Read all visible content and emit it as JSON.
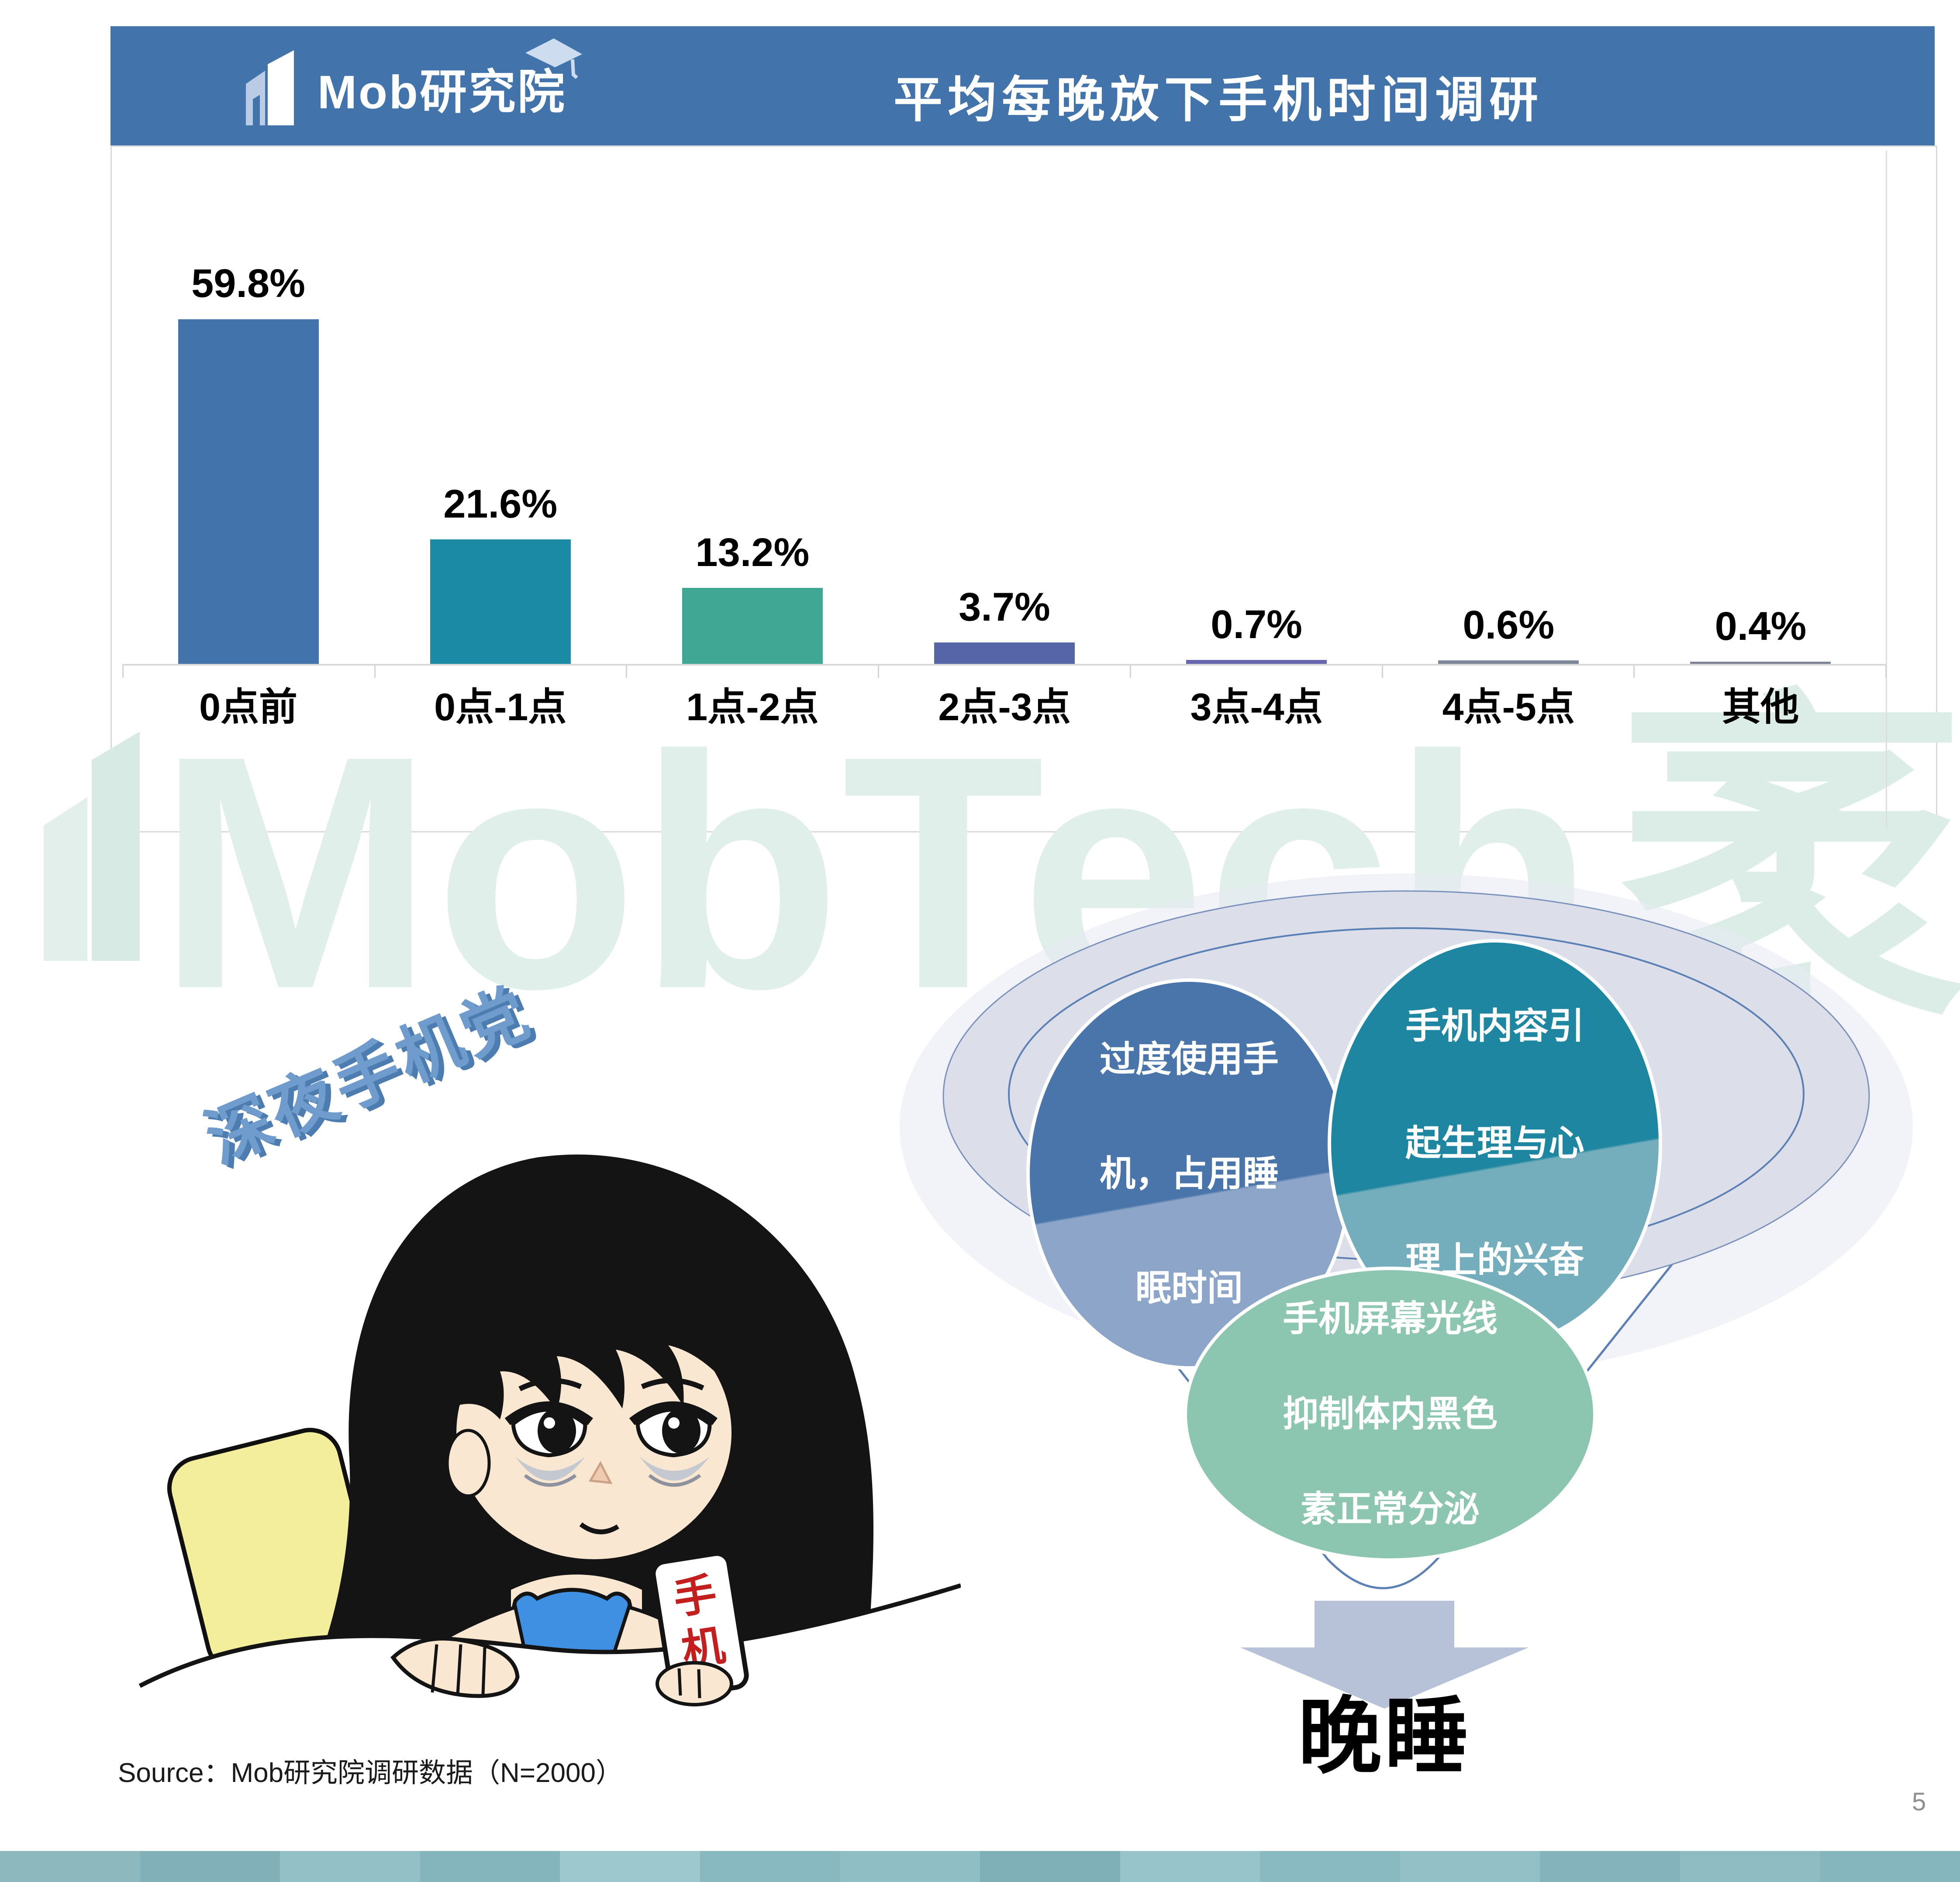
{
  "header": {
    "logo_text": "Mob研究院",
    "title": "平均每晚放下手机时间调研"
  },
  "chart_data": {
    "type": "bar",
    "title": "平均每晚放下手机时间调研",
    "categories": [
      "0点前",
      "0点-1点",
      "1点-2点",
      "2点-3点",
      "3点-4点",
      "4点-5点",
      "其他"
    ],
    "values": [
      59.8,
      21.6,
      13.2,
      3.7,
      0.7,
      0.6,
      0.4
    ],
    "value_labels": [
      "59.8%",
      "21.6%",
      "13.2%",
      "3.7%",
      "0.7%",
      "0.6%",
      "0.4%"
    ],
    "bar_colors": [
      "#4273ab",
      "#1b8aa5",
      "#3fa794",
      "#5665a8",
      "#6765ae",
      "#7e8798",
      "#7c8495"
    ],
    "xlabel": "",
    "ylabel": "",
    "ylim": [
      0,
      65
    ],
    "grid": false,
    "legend": false,
    "value_labels_position": "above"
  },
  "watermark": {
    "text_latin": "MobTech",
    "text_cjk": "袤博",
    "color": "#e1efea"
  },
  "annotation": {
    "badge": "深夜手机党"
  },
  "cartoon": {
    "phone_label_chars": [
      "手",
      "机"
    ]
  },
  "funnel": {
    "bubbles": [
      {
        "lines": [
          "过度使用手",
          "机，占用睡",
          "眠时间"
        ],
        "color_top": "#4a75aa",
        "color_bottom": "#8ca5c8"
      },
      {
        "lines": [
          "手机内容引",
          "起生理与心",
          "理上的兴奋"
        ],
        "color_top": "#1e86a1",
        "color_bottom": "#74aebc"
      },
      {
        "lines": [
          "手机屏幕光线",
          "抑制体内黑色",
          "素正常分泌"
        ],
        "color_top": "#8cc6b1",
        "color_bottom": "#8cc6b1"
      }
    ],
    "result_label": "晚睡"
  },
  "footer": {
    "source": "Source：Mob研究院调研数据（N=2000）",
    "page_number": "5",
    "strip_colors": [
      "#8db8be",
      "#82b0b8",
      "#93c0c6",
      "#85b5bc",
      "#9dc9ce",
      "#88b9c0",
      "#90bec5",
      "#7fafb7",
      "#97c4ca",
      "#8abac1",
      "#93c0c6",
      "#84b3bb",
      "#8fbcc3",
      "#86b6bd"
    ]
  }
}
